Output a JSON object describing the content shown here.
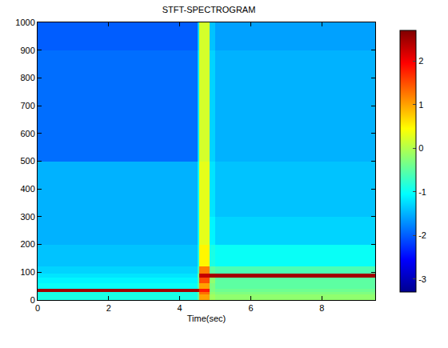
{
  "chart_data": {
    "type": "heatmap",
    "title": "STFT-SPECTROGRAM",
    "x_label": "Time(sec)",
    "xlim": [
      0,
      9.5
    ],
    "xticks": [
      0,
      2,
      4,
      6,
      8
    ],
    "ylim": [
      0,
      1000
    ],
    "yticks": [
      0,
      100,
      200,
      300,
      400,
      500,
      600,
      700,
      800,
      900,
      1000
    ],
    "x_edges": [
      0,
      0.5,
      1,
      1.5,
      2,
      2.5,
      3,
      3.5,
      4,
      4.5,
      4.55,
      4.85,
      5,
      5.5,
      6,
      6.5,
      7,
      7.5,
      8,
      8.5,
      9,
      9.5
    ],
    "y_edges": [
      0,
      20,
      30,
      40,
      60,
      82,
      94,
      120,
      200,
      300,
      400,
      500,
      600,
      700,
      800,
      900,
      1000
    ],
    "z": [
      [
        -0.9,
        -0.9,
        -0.9,
        -0.9,
        -0.9,
        -0.9,
        -0.9,
        -0.9,
        -0.9,
        -0.5,
        1.0,
        -0.1,
        -0.2,
        -0.2,
        -0.2,
        -0.2,
        -0.2,
        -0.2,
        -0.2,
        -0.2,
        -0.2
      ],
      [
        -0.9,
        -0.9,
        -0.9,
        -0.9,
        -0.9,
        -0.9,
        -0.9,
        -0.9,
        -0.9,
        -0.4,
        1.3,
        -0.2,
        -0.3,
        -0.3,
        -0.3,
        -0.3,
        -0.3,
        -0.3,
        -0.3,
        -0.3,
        -0.3
      ],
      [
        2.5,
        2.5,
        2.5,
        2.5,
        2.5,
        2.5,
        2.5,
        2.5,
        2.5,
        2.4,
        1.8,
        -0.3,
        -0.4,
        -0.4,
        -0.4,
        -0.4,
        -0.4,
        -0.4,
        -0.4,
        -0.4,
        -0.4
      ],
      [
        -1.0,
        -1.0,
        -1.0,
        -1.0,
        -1.0,
        -1.0,
        -1.0,
        -1.0,
        -1.0,
        -0.5,
        1.0,
        -0.3,
        -0.5,
        -0.5,
        -0.5,
        -0.5,
        -0.5,
        -0.5,
        -0.5,
        -0.5,
        -0.5
      ],
      [
        -1.1,
        -1.1,
        -1.1,
        -1.1,
        -1.1,
        -1.1,
        -1.1,
        -1.1,
        -1.1,
        -0.6,
        1.5,
        -0.2,
        -0.5,
        -0.5,
        -0.5,
        -0.5,
        -0.5,
        -0.5,
        -0.5,
        -0.5,
        -0.5
      ],
      [
        -1.2,
        -1.2,
        -1.2,
        -1.2,
        -1.2,
        -1.2,
        -1.2,
        -1.2,
        -1.2,
        -0.4,
        2.3,
        2.5,
        2.5,
        2.5,
        2.5,
        2.5,
        2.5,
        2.5,
        2.5,
        2.5,
        2.5
      ],
      [
        -1.3,
        -1.3,
        -1.3,
        -1.3,
        -1.3,
        -1.3,
        -1.3,
        -1.3,
        -1.3,
        -0.7,
        1.2,
        -0.5,
        -0.6,
        -0.6,
        -0.6,
        -0.6,
        -0.6,
        -0.6,
        -0.6,
        -0.6,
        -0.6
      ],
      [
        -1.4,
        -1.4,
        -1.4,
        -1.4,
        -1.4,
        -1.4,
        -1.4,
        -1.4,
        -1.4,
        -0.9,
        0.5,
        -0.9,
        -1.0,
        -1.0,
        -1.0,
        -1.0,
        -1.0,
        -1.0,
        -1.0,
        -1.0,
        -1.0
      ],
      [
        -1.5,
        -1.5,
        -1.5,
        -1.5,
        -1.5,
        -1.5,
        -1.5,
        -1.5,
        -1.5,
        -1.0,
        0.3,
        -1.1,
        -1.3,
        -1.3,
        -1.3,
        -1.3,
        -1.3,
        -1.3,
        -1.3,
        -1.3,
        -1.3
      ],
      [
        -1.5,
        -1.5,
        -1.5,
        -1.5,
        -1.5,
        -1.5,
        -1.5,
        -1.5,
        -1.5,
        -1.0,
        0.3,
        -1.2,
        -1.4,
        -1.4,
        -1.4,
        -1.4,
        -1.4,
        -1.4,
        -1.4,
        -1.4,
        -1.4
      ],
      [
        -1.5,
        -1.5,
        -1.5,
        -1.5,
        -1.5,
        -1.5,
        -1.5,
        -1.5,
        -1.5,
        -1.0,
        0.3,
        -1.2,
        -1.4,
        -1.4,
        -1.4,
        -1.4,
        -1.4,
        -1.4,
        -1.4,
        -1.4,
        -1.4
      ],
      [
        -1.9,
        -1.9,
        -1.9,
        -1.9,
        -1.9,
        -1.9,
        -1.9,
        -1.9,
        -1.9,
        -1.2,
        0.2,
        -1.3,
        -1.5,
        -1.5,
        -1.5,
        -1.5,
        -1.5,
        -1.5,
        -1.5,
        -1.5,
        -1.5
      ],
      [
        -1.9,
        -1.9,
        -1.9,
        -1.9,
        -1.9,
        -1.9,
        -1.9,
        -1.9,
        -1.9,
        -1.2,
        0.2,
        -1.3,
        -1.5,
        -1.5,
        -1.5,
        -1.5,
        -1.5,
        -1.5,
        -1.5,
        -1.5,
        -1.5
      ],
      [
        -1.9,
        -1.9,
        -1.9,
        -1.9,
        -1.9,
        -1.9,
        -1.9,
        -1.9,
        -1.9,
        -1.2,
        0.2,
        -1.3,
        -1.5,
        -1.5,
        -1.5,
        -1.5,
        -1.5,
        -1.5,
        -1.5,
        -1.5,
        -1.5
      ],
      [
        -1.9,
        -1.9,
        -1.9,
        -1.9,
        -1.9,
        -1.9,
        -1.9,
        -1.9,
        -1.9,
        -1.2,
        0.2,
        -1.3,
        -1.5,
        -1.5,
        -1.5,
        -1.5,
        -1.5,
        -1.5,
        -1.5,
        -1.5,
        -1.5
      ],
      [
        -2.0,
        -2.0,
        -2.0,
        -2.0,
        -2.0,
        -2.0,
        -2.0,
        -2.0,
        -2.0,
        -1.3,
        0.2,
        -1.4,
        -1.6,
        -1.6,
        -1.6,
        -1.6,
        -1.6,
        -1.6,
        -1.6,
        -1.6,
        -1.6
      ]
    ],
    "colorbar_range": [
      -3.3,
      2.7
    ],
    "colorbar_ticks": [
      -3,
      -2,
      -1,
      0,
      1,
      2
    ]
  }
}
